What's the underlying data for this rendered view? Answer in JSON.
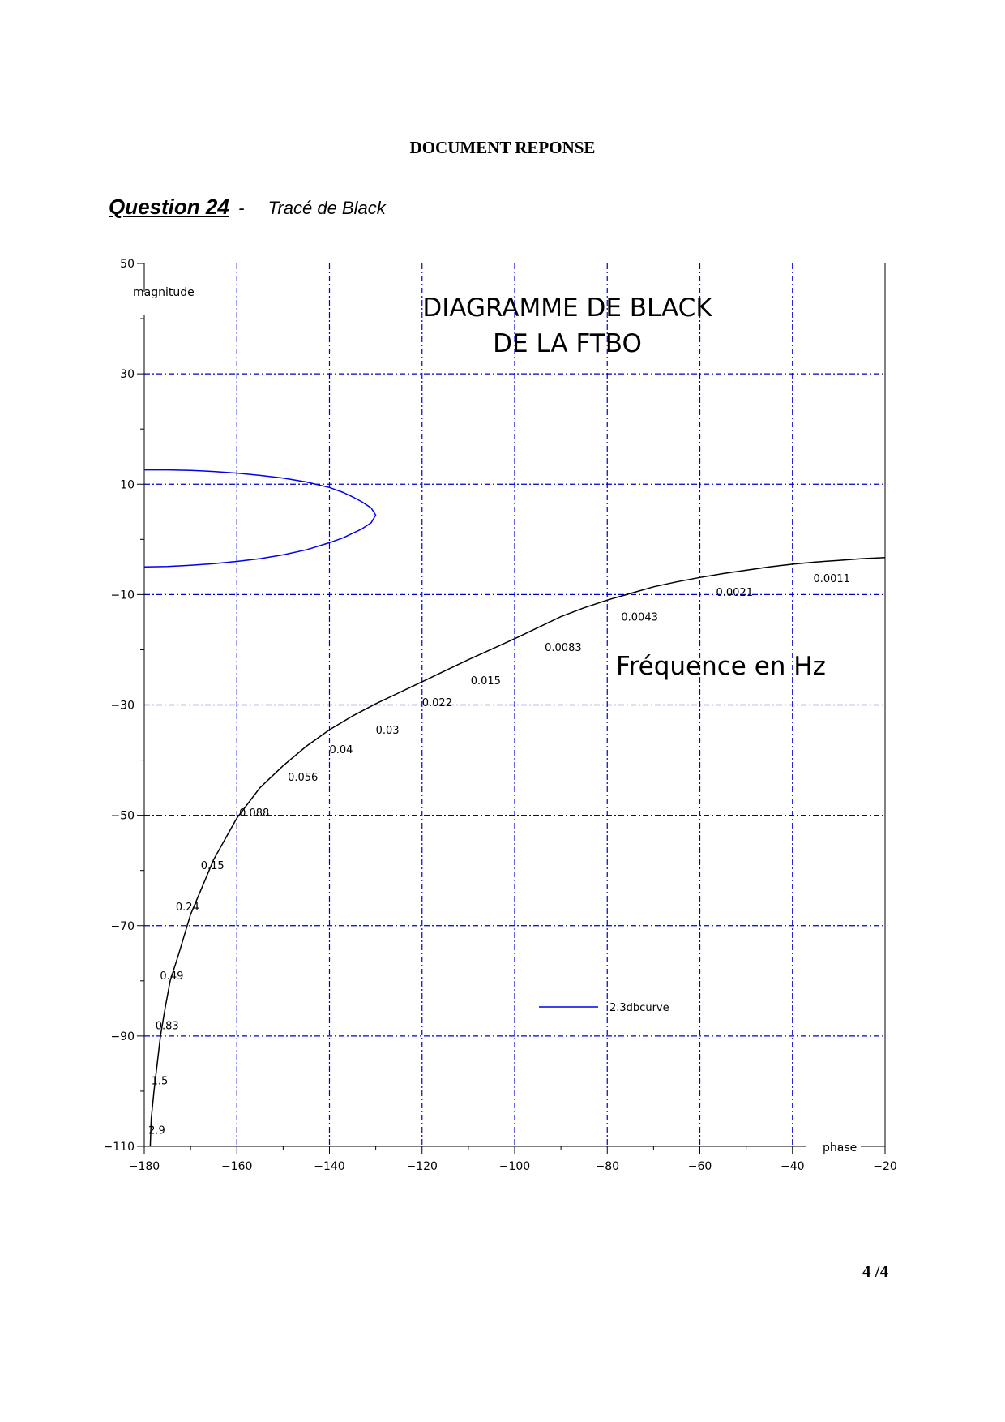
{
  "document": {
    "header": "DOCUMENT REPONSE",
    "question_label": "Question 24",
    "question_separator": "-",
    "question_subtitle": "Tracé de Black",
    "page_number": "4 /4"
  },
  "chart_data": {
    "type": "line",
    "title_lines": [
      "DIAGRAMME DE BLACK",
      "DE LA FTBO"
    ],
    "xlabel": "phase",
    "ylabel": "magnitude",
    "xlim": [
      -180,
      -20
    ],
    "ylim": [
      -110,
      50
    ],
    "x_ticks": [
      -180,
      -160,
      -140,
      -120,
      -100,
      -80,
      -60,
      -40,
      -20
    ],
    "y_ticks": [
      -110,
      -90,
      -70,
      -50,
      -30,
      -10,
      10,
      30,
      50
    ],
    "annotation": "Fréquence en Hz",
    "grid": true,
    "legend_position": "lower-right",
    "colors": {
      "grid": "#0000cc",
      "ftbo_curve": "#000000",
      "contour": "#0000ee"
    },
    "series": [
      {
        "id": "ftbo",
        "x": [
          -178.7,
          -178.5,
          -177.9,
          -177.2,
          -176.5,
          -175.5,
          -174.4,
          -172.5,
          -170,
          -167,
          -165,
          -160,
          -155,
          -150,
          -145,
          -140,
          -135,
          -130,
          -125,
          -120,
          -115,
          -110,
          -105,
          -100,
          -95,
          -90,
          -85,
          -80,
          -75,
          -70,
          -65,
          -60,
          -55,
          -50,
          -45,
          -40,
          -35,
          -30,
          -25,
          -20
        ],
        "y": [
          -110,
          -105,
          -100,
          -95,
          -90,
          -85,
          -80,
          -75,
          -68,
          -62,
          -58,
          -50.5,
          -45,
          -41,
          -37.5,
          -34.5,
          -32,
          -29.8,
          -27.8,
          -25.8,
          -23.8,
          -21.8,
          -19.9,
          -18,
          -16,
          -14,
          -12.4,
          -11,
          -9.8,
          -8.6,
          -7.7,
          -6.9,
          -6.2,
          -5.6,
          -5,
          -4.5,
          -4.1,
          -3.8,
          -3.5,
          -3.3
        ]
      },
      {
        "id": "contour",
        "name": "2.3dbcurve",
        "x": [
          -180,
          -175,
          -170,
          -165,
          -160,
          -155,
          -150,
          -145,
          -140,
          -137,
          -135,
          -133,
          -131,
          -130,
          -131,
          -133,
          -135,
          -137,
          -140,
          -145,
          -150,
          -155,
          -160,
          -165,
          -170,
          -175,
          -180
        ],
        "y": [
          12.6,
          12.6,
          12.5,
          12.3,
          12,
          11.6,
          11.1,
          10.4,
          9.4,
          8.5,
          7.7,
          6.8,
          5.7,
          4.4,
          3,
          1.9,
          1.1,
          0.3,
          -0.6,
          -1.9,
          -2.8,
          -3.5,
          -4,
          -4.4,
          -4.7,
          -4.9,
          -5
        ]
      }
    ],
    "frequency_labels": [
      {
        "text": "2.9",
        "x": -179.1,
        "y": -107
      },
      {
        "text": "1.5",
        "x": -178.5,
        "y": -98
      },
      {
        "text": "0.83",
        "x": -177.6,
        "y": -88
      },
      {
        "text": "0.49",
        "x": -176.6,
        "y": -79
      },
      {
        "text": "0.24",
        "x": -173.2,
        "y": -66.5
      },
      {
        "text": "0.15",
        "x": -167.8,
        "y": -59
      },
      {
        "text": "0.088",
        "x": -159.5,
        "y": -49.5
      },
      {
        "text": "0.056",
        "x": -149,
        "y": -43
      },
      {
        "text": "0.04",
        "x": -140,
        "y": -38
      },
      {
        "text": "0.03",
        "x": -130,
        "y": -34.5
      },
      {
        "text": "0.022",
        "x": -120,
        "y": -29.5
      },
      {
        "text": "0.015",
        "x": -109.5,
        "y": -25.5
      },
      {
        "text": "0.0083",
        "x": -93.5,
        "y": -19.5
      },
      {
        "text": "0.0043",
        "x": -77,
        "y": -14
      },
      {
        "text": "0.0021",
        "x": -56.5,
        "y": -9.5
      },
      {
        "text": "0.0011",
        "x": -35.5,
        "y": -7
      }
    ]
  }
}
